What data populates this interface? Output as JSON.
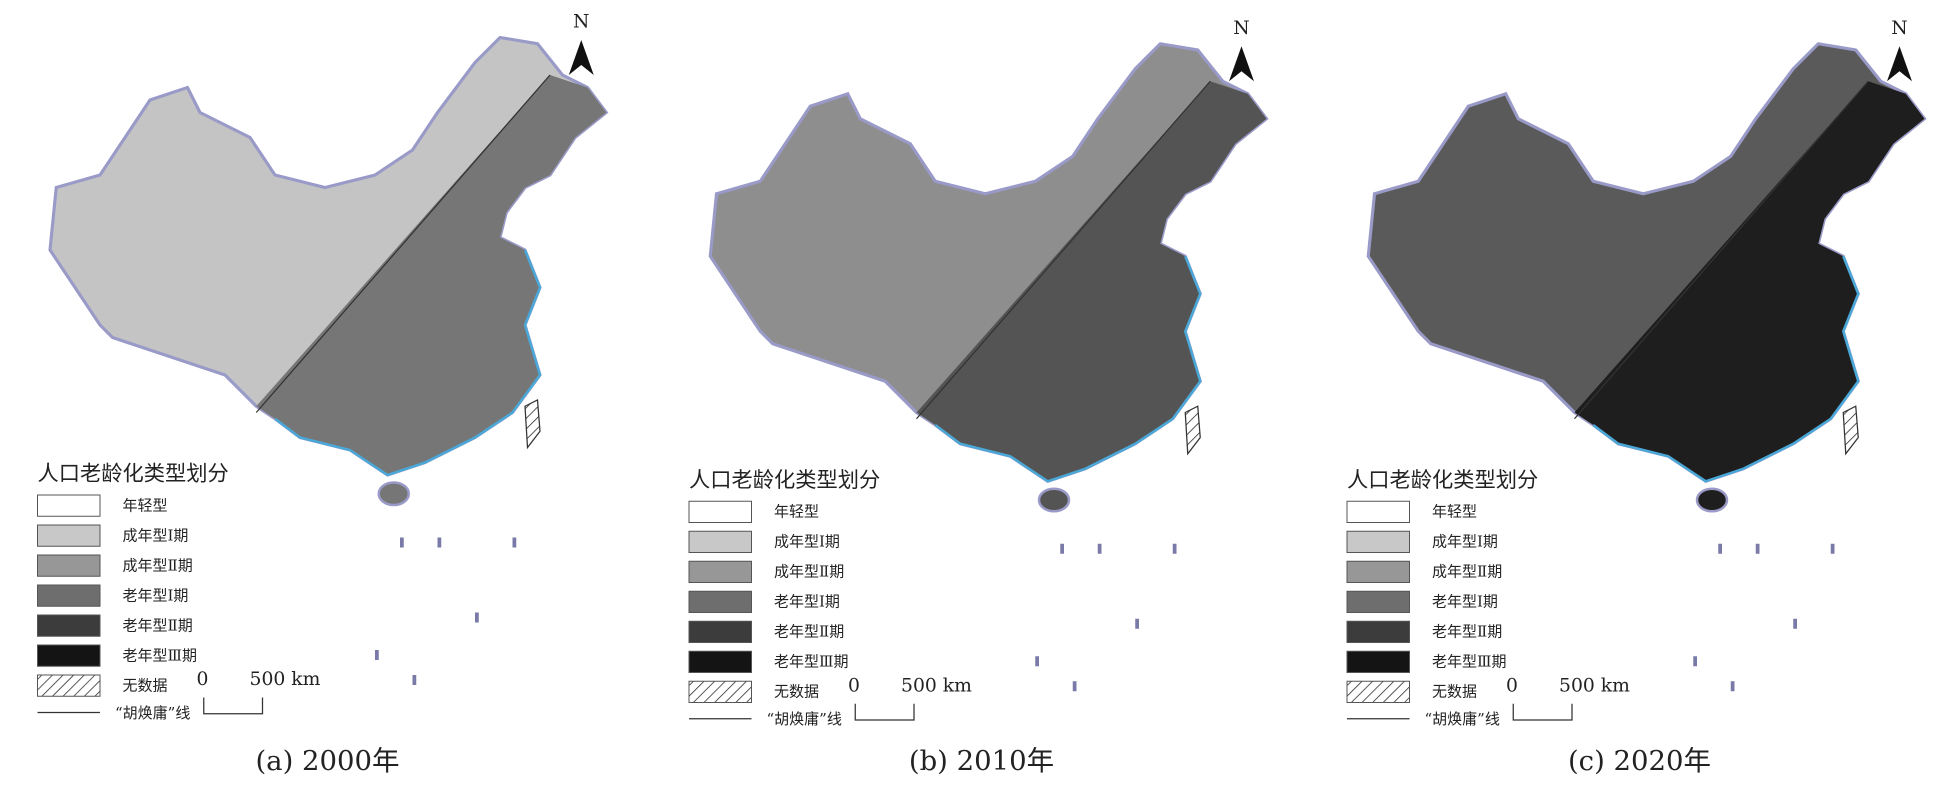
{
  "panels": [
    {
      "caption": "(a) 2000年",
      "north": "N",
      "legend_title": "人口老龄化类型划分",
      "legend": [
        {
          "label": "年轻型",
          "color": "#ffffff"
        },
        {
          "label": "成年型Ⅰ期",
          "color": "#c8c8c8"
        },
        {
          "label": "成年型Ⅱ期",
          "color": "#979797"
        },
        {
          "label": "老年型Ⅰ期",
          "color": "#6e6e6e"
        },
        {
          "label": "老年型Ⅱ期",
          "color": "#3c3c3c"
        },
        {
          "label": "老年型Ⅲ期",
          "color": "#141414"
        },
        {
          "label": "无数据",
          "hatched": true
        }
      ],
      "hu_line_label": "“胡焕庸”线",
      "scale_labels": [
        "0",
        "500 km"
      ]
    },
    {
      "caption": "(b) 2010年",
      "north": "N",
      "legend_title": "人口老龄化类型划分",
      "legend": [
        {
          "label": "年轻型",
          "color": "#ffffff"
        },
        {
          "label": "成年型Ⅰ期",
          "color": "#c8c8c8"
        },
        {
          "label": "成年型Ⅱ期",
          "color": "#979797"
        },
        {
          "label": "老年型Ⅰ期",
          "color": "#6e6e6e"
        },
        {
          "label": "老年型Ⅱ期",
          "color": "#3c3c3c"
        },
        {
          "label": "老年型Ⅲ期",
          "color": "#141414"
        },
        {
          "label": "无数据",
          "hatched": true
        }
      ],
      "hu_line_label": "“胡焕庸”线",
      "scale_labels": [
        "0",
        "500 km"
      ]
    },
    {
      "caption": "(c) 2020年",
      "north": "N",
      "legend_title": "人口老龄化类型划分",
      "legend": [
        {
          "label": "年轻型",
          "color": "#ffffff"
        },
        {
          "label": "成年型Ⅰ期",
          "color": "#c8c8c8"
        },
        {
          "label": "成年型Ⅱ期",
          "color": "#979797"
        },
        {
          "label": "老年型Ⅰ期",
          "color": "#6e6e6e"
        },
        {
          "label": "老年型Ⅱ期",
          "color": "#3c3c3c"
        },
        {
          "label": "老年型Ⅲ期",
          "color": "#141414"
        },
        {
          "label": "无数据",
          "hatched": true
        }
      ],
      "hu_line_label": "“胡焕庸”线",
      "scale_labels": [
        "0",
        "500 km"
      ]
    }
  ]
}
